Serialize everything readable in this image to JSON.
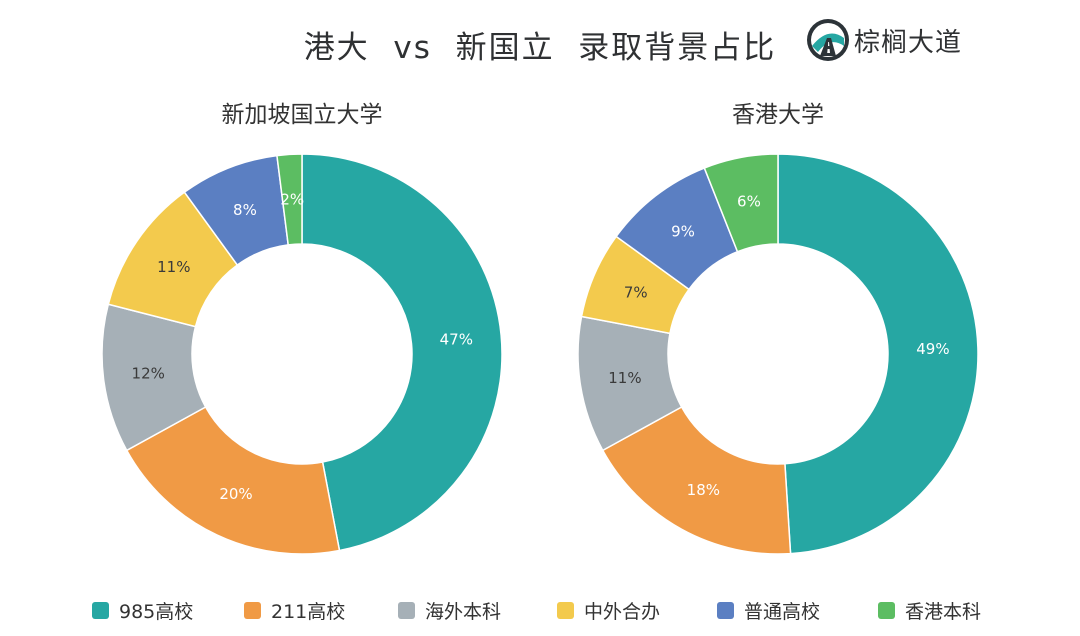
{
  "header": {
    "title": "港大  vs  新国立  录取背景占比",
    "brand_name": "棕榈大道",
    "brand_logo_icon": "road-logo-icon"
  },
  "legend": {
    "items": [
      {
        "label": "985高校",
        "color": "#26a7a3"
      },
      {
        "label": "211高校",
        "color": "#f09a45"
      },
      {
        "label": "海外本科",
        "color": "#a6b0b7"
      },
      {
        "label": "中外合办",
        "color": "#f3ca4d"
      },
      {
        "label": "普通高校",
        "color": "#5b7fc2"
      },
      {
        "label": "香港本科",
        "color": "#5cbd62"
      }
    ]
  },
  "chart_data": [
    {
      "type": "pie",
      "style": "donut",
      "title": "新加坡国立大学",
      "categories": [
        "985高校",
        "211高校",
        "海外本科",
        "中外合办",
        "普通高校",
        "香港本科"
      ],
      "values": [
        47,
        20,
        12,
        11,
        8,
        2
      ],
      "labels": [
        "47%",
        "20%",
        "12%",
        "11%",
        "8%",
        "2%"
      ],
      "colors": [
        "#26a7a3",
        "#f09a45",
        "#a6b0b7",
        "#f3ca4d",
        "#5b7fc2",
        "#5cbd62"
      ],
      "legend_position": "bottom"
    },
    {
      "type": "pie",
      "style": "donut",
      "title": "香港大学",
      "categories": [
        "985高校",
        "211高校",
        "海外本科",
        "中外合办",
        "普通高校",
        "香港本科"
      ],
      "values": [
        49,
        18,
        11,
        7,
        9,
        6
      ],
      "labels": [
        "49%",
        "18%",
        "11%",
        "7%",
        "9%",
        "6%"
      ],
      "colors": [
        "#26a7a3",
        "#f09a45",
        "#a6b0b7",
        "#f3ca4d",
        "#5b7fc2",
        "#5cbd62"
      ],
      "legend_position": "bottom"
    }
  ]
}
